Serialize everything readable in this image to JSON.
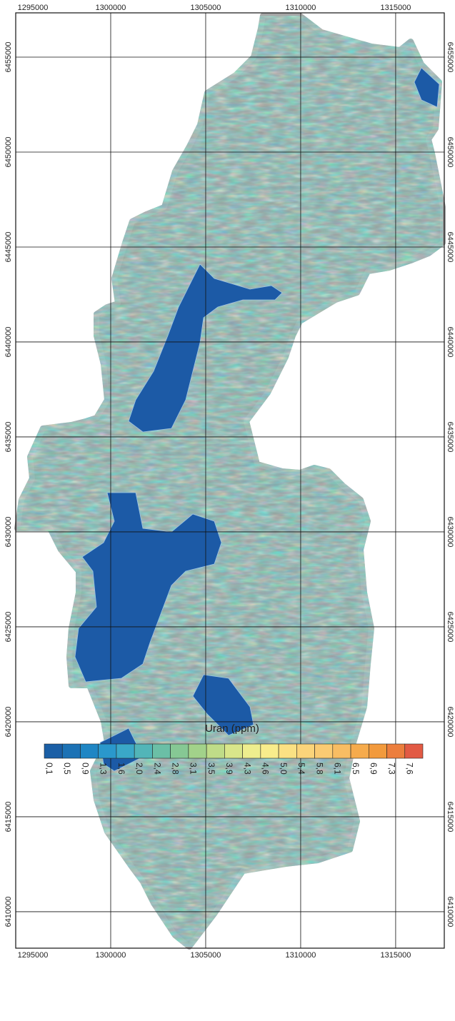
{
  "map": {
    "xlim": [
      1295000,
      1317560
    ],
    "ylim": [
      6408080,
      6457330
    ],
    "xticks": [
      1295000,
      1300000,
      1305000,
      1310000,
      1315000
    ],
    "yticks": [
      6410000,
      6415000,
      6420000,
      6425000,
      6430000,
      6435000,
      6440000,
      6445000,
      6450000,
      6455000
    ]
  },
  "legend": {
    "title": "Uran (ppm)",
    "ticks": [
      {
        "value": 0.1,
        "label": "0,1"
      },
      {
        "value": 0.5,
        "label": "0,5"
      },
      {
        "value": 0.9,
        "label": "0,9"
      },
      {
        "value": 1.3,
        "label": "1,3"
      },
      {
        "value": 1.6,
        "label": "1,6"
      },
      {
        "value": 2.0,
        "label": "2,0"
      },
      {
        "value": 2.4,
        "label": "2,4"
      },
      {
        "value": 2.8,
        "label": "2,8"
      },
      {
        "value": 3.1,
        "label": "3,1"
      },
      {
        "value": 3.5,
        "label": "3,5"
      },
      {
        "value": 3.9,
        "label": "3,9"
      },
      {
        "value": 4.3,
        "label": "4,3"
      },
      {
        "value": 4.6,
        "label": "4,6"
      },
      {
        "value": 5.0,
        "label": "5,0"
      },
      {
        "value": 5.4,
        "label": "5,4"
      },
      {
        "value": 5.8,
        "label": "5,8"
      },
      {
        "value": 6.1,
        "label": "6,1"
      },
      {
        "value": 6.5,
        "label": "6,5"
      },
      {
        "value": 6.9,
        "label": "6,9"
      },
      {
        "value": 7.3,
        "label": "7,3"
      },
      {
        "value": 7.6,
        "label": "7,6"
      }
    ],
    "colors": [
      "#1b5fa6",
      "#1c72b5",
      "#1f86c4",
      "#2a98cc",
      "#3aa8c8",
      "#52b5b8",
      "#6bbfa6",
      "#86c894",
      "#a2d28a",
      "#bfdc88",
      "#d9e68a",
      "#eeee8e",
      "#f8ed8c",
      "#fbe183",
      "#fbd47a",
      "#facb73",
      "#f8bd63",
      "#f6ab4c",
      "#f29a3c",
      "#ec7e3d",
      "#e25a44"
    ]
  }
}
